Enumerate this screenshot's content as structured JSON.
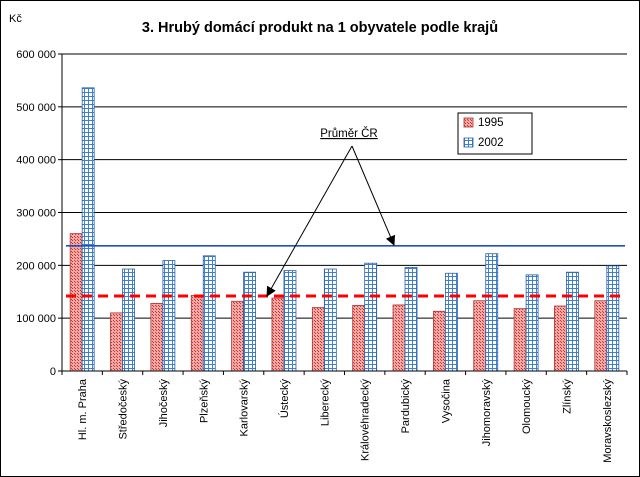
{
  "chart_data": {
    "type": "bar",
    "title": "3. Hrubý domácí produkt na 1 obyvatele podle krajů",
    "ylabel": "Kč",
    "ylim": [
      0,
      600000
    ],
    "yticks": [
      0,
      100000,
      200000,
      300000,
      400000,
      500000,
      600000
    ],
    "ytick_labels": [
      "0",
      "100 000",
      "200 000",
      "300 000",
      "400 000",
      "500 000",
      "600 000"
    ],
    "grid": true,
    "legend": "top-right",
    "categories": [
      "Hl. m. Praha",
      "Středočeský",
      "Jihočeský",
      "Plzeňský",
      "Karlovarský",
      "Ústecký",
      "Liberecký",
      "Královéhradecký",
      "Pardubický",
      "Vysočina",
      "Jihomoravský",
      "Olomoucký",
      "Zlínský",
      "Moravskoslezský"
    ],
    "series": [
      {
        "name": "1995",
        "color": "#e85a5a",
        "values": [
          260000,
          110000,
          128000,
          143000,
          132000,
          138000,
          120000,
          124000,
          125000,
          113000,
          133000,
          118000,
          123000,
          133000
        ]
      },
      {
        "name": "2002",
        "color": "#5b9bd5",
        "values": [
          536000,
          193000,
          209000,
          218000,
          187000,
          190000,
          193000,
          204000,
          196000,
          185000,
          222000,
          182000,
          187000,
          199000
        ]
      }
    ],
    "reference_lines": [
      {
        "series": "1995",
        "value": 142000,
        "color": "#ff0000",
        "style": "dashed"
      },
      {
        "series": "2002",
        "value": 237000,
        "color": "#1f4fbf",
        "style": "solid"
      }
    ],
    "annotation": "Průměr ČR"
  }
}
